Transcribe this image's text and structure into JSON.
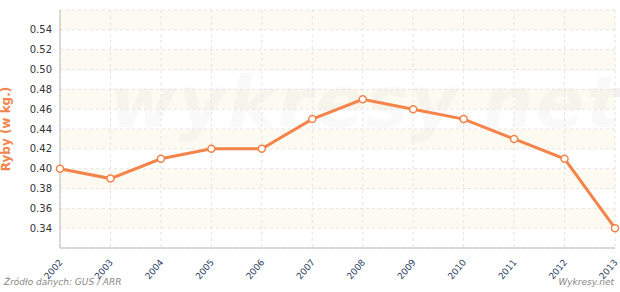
{
  "chart_data": {
    "type": "line",
    "y_label": "Ryby (w kg.)",
    "annotations": [
      "Źródło danych: GUS / ARR",
      "Wykresy.net",
      "wykresy.net"
    ],
    "categories": [
      "2002",
      "2003",
      "2004",
      "2005",
      "2006",
      "2007",
      "2008",
      "2009",
      "2010",
      "2011",
      "2012",
      "2013"
    ],
    "values": [
      0.4,
      0.39,
      0.41,
      0.42,
      0.42,
      0.45,
      0.47,
      0.46,
      0.45,
      0.43,
      0.41,
      0.34
    ],
    "color": "#f5844a",
    "marker": "circle",
    "line_style": "solid",
    "ylim": [
      0.32,
      0.56
    ],
    "yticks": [
      0.34,
      0.36,
      0.38,
      {
        "value": 0.4,
        "label": "0.40"
      },
      0.42,
      0.44,
      0.46,
      0.48,
      {
        "value": 0.5,
        "label": "0.50"
      },
      0.52,
      0.54
    ],
    "grid": true
  }
}
